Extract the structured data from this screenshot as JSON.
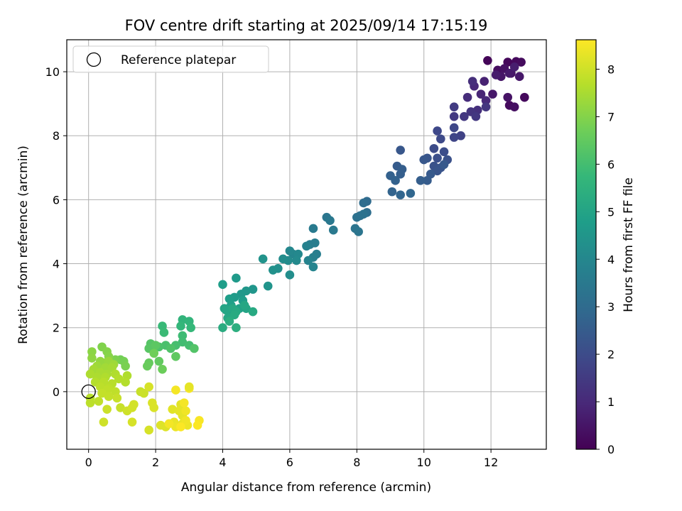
{
  "chart_data": {
    "type": "scatter",
    "title": "FOV centre drift starting at 2025/09/14 17:15:19",
    "xlabel": "Angular distance from reference (arcmin)",
    "ylabel": "Rotation from reference (arcmin)",
    "xlim": [
      -0.65,
      13.65
    ],
    "ylim": [
      -1.8,
      11.0
    ],
    "xticks": [
      "0",
      "2",
      "4",
      "6",
      "8",
      "10",
      "12"
    ],
    "yticks": [
      "0",
      "2",
      "4",
      "6",
      "8",
      "10"
    ],
    "grid": true,
    "legend": {
      "position": "top-left",
      "entries": [
        "Reference platepar"
      ]
    },
    "reference_point": {
      "x": 0,
      "y": 0
    },
    "colorbar": {
      "label": "Hours from first FF file",
      "min": 0,
      "max": 8.62,
      "ticks": [
        "0",
        "1",
        "2",
        "3",
        "4",
        "5",
        "6",
        "7",
        "8"
      ],
      "colormap": [
        "#440154",
        "#482878",
        "#3e4989",
        "#31688e",
        "#26828e",
        "#1f9e89",
        "#35b779",
        "#6ece58",
        "#b5de2b",
        "#fde725"
      ]
    },
    "points": [
      [
        11.9,
        10.35,
        0.1
      ],
      [
        12.5,
        10.3,
        0.15
      ],
      [
        12.75,
        10.32,
        0.2
      ],
      [
        12.9,
        10.3,
        0.25
      ],
      [
        12.2,
        10.05,
        0.3
      ],
      [
        12.4,
        10.1,
        0.4
      ],
      [
        12.6,
        9.95,
        0.45
      ],
      [
        12.3,
        9.85,
        0.5
      ],
      [
        12.85,
        9.85,
        0.55
      ],
      [
        12.55,
        9.95,
        0.6
      ],
      [
        12.15,
        9.9,
        0.65
      ],
      [
        12.7,
        10.15,
        0.7
      ],
      [
        13.0,
        9.2,
        0.2
      ],
      [
        12.55,
        8.95,
        0.25
      ],
      [
        12.7,
        8.9,
        0.35
      ],
      [
        12.5,
        9.2,
        0.45
      ],
      [
        12.05,
        9.3,
        0.55
      ],
      [
        11.8,
        9.7,
        0.8
      ],
      [
        11.7,
        9.3,
        0.9
      ],
      [
        11.5,
        9.55,
        1.0
      ],
      [
        11.85,
        9.1,
        1.0
      ],
      [
        11.3,
        9.2,
        1.1
      ],
      [
        11.6,
        8.8,
        1.2
      ],
      [
        11.45,
        9.7,
        1.15
      ],
      [
        11.2,
        8.6,
        1.4
      ],
      [
        11.4,
        8.75,
        1.3
      ],
      [
        11.85,
        8.9,
        1.35
      ],
      [
        11.55,
        8.6,
        1.4
      ],
      [
        10.9,
        8.9,
        1.5
      ],
      [
        10.9,
        8.6,
        1.45
      ],
      [
        11.1,
        8.0,
        1.7
      ],
      [
        10.9,
        7.95,
        1.8
      ],
      [
        10.4,
        8.15,
        1.9
      ],
      [
        10.9,
        8.25,
        1.85
      ],
      [
        10.5,
        7.9,
        1.95
      ],
      [
        10.3,
        7.6,
        2.0
      ],
      [
        10.6,
        7.5,
        2.05
      ],
      [
        10.4,
        7.3,
        2.1
      ],
      [
        10.7,
        7.25,
        2.15
      ],
      [
        10.3,
        7.05,
        2.2
      ],
      [
        10.5,
        7.0,
        2.25
      ],
      [
        10.1,
        7.3,
        2.3
      ],
      [
        10.0,
        7.25,
        2.35
      ],
      [
        10.4,
        6.9,
        2.3
      ],
      [
        10.6,
        7.1,
        2.4
      ],
      [
        10.2,
        6.8,
        2.45
      ],
      [
        10.1,
        6.6,
        2.5
      ],
      [
        9.9,
        6.6,
        2.55
      ],
      [
        9.3,
        7.55,
        2.35
      ],
      [
        9.2,
        7.05,
        2.5
      ],
      [
        9.35,
        6.95,
        2.55
      ],
      [
        9.3,
        6.8,
        2.6
      ],
      [
        9.0,
        6.75,
        2.65
      ],
      [
        9.15,
        6.6,
        2.7
      ],
      [
        9.05,
        6.25,
        2.75
      ],
      [
        9.3,
        6.15,
        2.8
      ],
      [
        9.6,
        6.2,
        2.85
      ],
      [
        8.3,
        5.95,
        3.0
      ],
      [
        8.2,
        5.9,
        3.05
      ],
      [
        8.3,
        5.6,
        3.1
      ],
      [
        8.1,
        5.5,
        3.15
      ],
      [
        8.0,
        5.45,
        3.2
      ],
      [
        8.2,
        5.55,
        3.25
      ],
      [
        7.95,
        5.1,
        3.3
      ],
      [
        8.05,
        5.0,
        3.35
      ],
      [
        7.1,
        5.45,
        3.4
      ],
      [
        7.2,
        5.35,
        3.45
      ],
      [
        7.3,
        5.05,
        3.5
      ],
      [
        6.7,
        5.1,
        3.55
      ],
      [
        6.6,
        4.6,
        3.6
      ],
      [
        6.75,
        4.65,
        3.65
      ],
      [
        6.8,
        4.3,
        3.7
      ],
      [
        6.7,
        4.2,
        3.75
      ],
      [
        6.5,
        4.55,
        3.8
      ],
      [
        6.55,
        4.1,
        3.85
      ],
      [
        6.7,
        3.9,
        3.9
      ],
      [
        6.1,
        4.3,
        3.95
      ],
      [
        6.0,
        4.4,
        4.0
      ],
      [
        6.25,
        4.3,
        4.05
      ],
      [
        6.2,
        4.1,
        4.1
      ],
      [
        5.95,
        4.1,
        4.15
      ],
      [
        5.8,
        4.15,
        4.2
      ],
      [
        6.0,
        3.65,
        4.25
      ],
      [
        5.65,
        3.85,
        4.3
      ],
      [
        5.5,
        3.8,
        4.35
      ],
      [
        5.2,
        4.15,
        4.4
      ],
      [
        5.35,
        3.3,
        4.45
      ],
      [
        4.9,
        3.2,
        4.5
      ],
      [
        4.7,
        3.15,
        4.55
      ],
      [
        4.55,
        3.05,
        4.6
      ],
      [
        4.4,
        3.55,
        4.65
      ],
      [
        4.35,
        2.95,
        4.7
      ],
      [
        4.6,
        2.85,
        4.75
      ],
      [
        4.2,
        2.9,
        4.8
      ],
      [
        4.25,
        2.7,
        4.85
      ],
      [
        4.5,
        2.6,
        4.9
      ],
      [
        4.3,
        2.5,
        4.95
      ],
      [
        4.7,
        2.6,
        5.0
      ],
      [
        4.05,
        2.6,
        5.0
      ],
      [
        4.1,
        2.55,
        5.05
      ],
      [
        4.15,
        2.3,
        5.1
      ],
      [
        4.3,
        2.6,
        5.15
      ],
      [
        4.4,
        2.5,
        5.2
      ],
      [
        4.9,
        2.5,
        5.2
      ],
      [
        4.35,
        2.4,
        5.25
      ],
      [
        4.0,
        3.35,
        4.8
      ],
      [
        4.0,
        2.0,
        5.3
      ],
      [
        4.2,
        2.2,
        5.35
      ],
      [
        4.4,
        2.0,
        5.4
      ],
      [
        4.65,
        2.7,
        5.1
      ],
      [
        2.8,
        2.25,
        5.6
      ],
      [
        3.0,
        2.2,
        5.65
      ],
      [
        2.75,
        2.05,
        5.7
      ],
      [
        3.05,
        2.0,
        5.75
      ],
      [
        2.2,
        2.05,
        5.8
      ],
      [
        2.25,
        1.85,
        5.85
      ],
      [
        2.8,
        1.75,
        5.9
      ],
      [
        2.8,
        1.55,
        5.95
      ],
      [
        3.0,
        1.45,
        6.0
      ],
      [
        2.6,
        1.45,
        6.05
      ],
      [
        2.3,
        1.45,
        6.1
      ],
      [
        2.1,
        1.4,
        6.15
      ],
      [
        2.45,
        1.35,
        6.2
      ],
      [
        3.15,
        1.35,
        6.25
      ],
      [
        1.85,
        1.5,
        6.3
      ],
      [
        1.8,
        1.35,
        6.35
      ],
      [
        2.0,
        1.45,
        6.4
      ],
      [
        2.6,
        1.1,
        6.45
      ],
      [
        2.1,
        0.95,
        6.5
      ],
      [
        1.8,
        0.9,
        6.55
      ],
      [
        1.75,
        0.8,
        6.6
      ],
      [
        2.2,
        0.7,
        6.65
      ],
      [
        1.95,
        1.2,
        6.7
      ],
      [
        0.95,
        1.0,
        6.75
      ],
      [
        1.05,
        0.95,
        6.8
      ],
      [
        1.1,
        0.8,
        6.85
      ],
      [
        0.8,
        1.0,
        6.9
      ],
      [
        0.4,
        1.4,
        6.95
      ],
      [
        0.55,
        1.25,
        7.0
      ],
      [
        0.6,
        1.1,
        7.05
      ],
      [
        0.1,
        1.25,
        7.1
      ],
      [
        0.1,
        1.05,
        7.15
      ],
      [
        0.35,
        0.95,
        7.2
      ],
      [
        0.45,
        0.9,
        7.25
      ],
      [
        0.6,
        0.95,
        7.3
      ],
      [
        0.75,
        0.85,
        7.35
      ],
      [
        0.25,
        0.8,
        7.35
      ],
      [
        0.5,
        0.75,
        7.4
      ],
      [
        0.7,
        0.75,
        7.45
      ],
      [
        0.15,
        0.7,
        7.45
      ],
      [
        0.35,
        0.6,
        7.5
      ],
      [
        0.55,
        0.55,
        7.5
      ],
      [
        0.05,
        0.55,
        7.55
      ],
      [
        0.25,
        0.45,
        7.55
      ],
      [
        0.5,
        0.45,
        7.6
      ],
      [
        0.8,
        0.55,
        7.6
      ],
      [
        0.9,
        0.4,
        7.65
      ],
      [
        0.2,
        0.3,
        7.65
      ],
      [
        0.45,
        0.3,
        7.7
      ],
      [
        0.7,
        0.25,
        7.7
      ],
      [
        0.6,
        0.1,
        7.75
      ],
      [
        0.35,
        0.15,
        7.75
      ],
      [
        0.55,
        0.05,
        7.8
      ],
      [
        0.8,
        0.0,
        7.8
      ],
      [
        0.4,
        -0.05,
        7.85
      ],
      [
        0.6,
        -0.15,
        7.85
      ],
      [
        0.85,
        -0.2,
        7.9
      ],
      [
        1.15,
        0.5,
        7.6
      ],
      [
        1.1,
        0.3,
        7.65
      ],
      [
        1.55,
        0.0,
        7.9
      ],
      [
        1.65,
        -0.05,
        7.95
      ],
      [
        0.95,
        -0.5,
        7.9
      ],
      [
        0.55,
        -0.55,
        7.95
      ],
      [
        0.45,
        -0.95,
        8.0
      ],
      [
        1.15,
        -0.6,
        8.0
      ],
      [
        1.35,
        -0.4,
        8.05
      ],
      [
        1.3,
        -0.5,
        8.05
      ],
      [
        1.3,
        -0.95,
        8.1
      ],
      [
        1.8,
        -1.2,
        8.1
      ],
      [
        1.8,
        0.15,
        8.1
      ],
      [
        1.9,
        -0.35,
        8.15
      ],
      [
        1.95,
        -0.5,
        8.15
      ],
      [
        2.15,
        -1.05,
        8.2
      ],
      [
        2.3,
        -1.1,
        8.2
      ],
      [
        2.5,
        -0.55,
        8.25
      ],
      [
        2.75,
        -0.4,
        8.25
      ],
      [
        2.7,
        -0.6,
        8.3
      ],
      [
        2.8,
        -0.75,
        8.3
      ],
      [
        2.55,
        -0.95,
        8.35
      ],
      [
        2.8,
        -1.0,
        8.35
      ],
      [
        2.95,
        -1.05,
        8.4
      ],
      [
        2.6,
        -1.1,
        8.4
      ],
      [
        2.9,
        -0.9,
        8.45
      ],
      [
        2.9,
        -0.6,
        8.45
      ],
      [
        2.85,
        -0.35,
        8.5
      ],
      [
        2.6,
        0.05,
        8.5
      ],
      [
        3.0,
        0.1,
        8.55
      ],
      [
        3.0,
        0.15,
        8.3
      ],
      [
        3.3,
        -0.9,
        8.55
      ],
      [
        3.25,
        -1.05,
        8.6
      ],
      [
        2.75,
        -1.1,
        8.6
      ],
      [
        2.4,
        -1.0,
        8.5
      ],
      [
        0.05,
        -0.2,
        7.7
      ],
      [
        0.05,
        -0.35,
        7.75
      ],
      [
        0.3,
        -0.3,
        7.8
      ]
    ]
  }
}
